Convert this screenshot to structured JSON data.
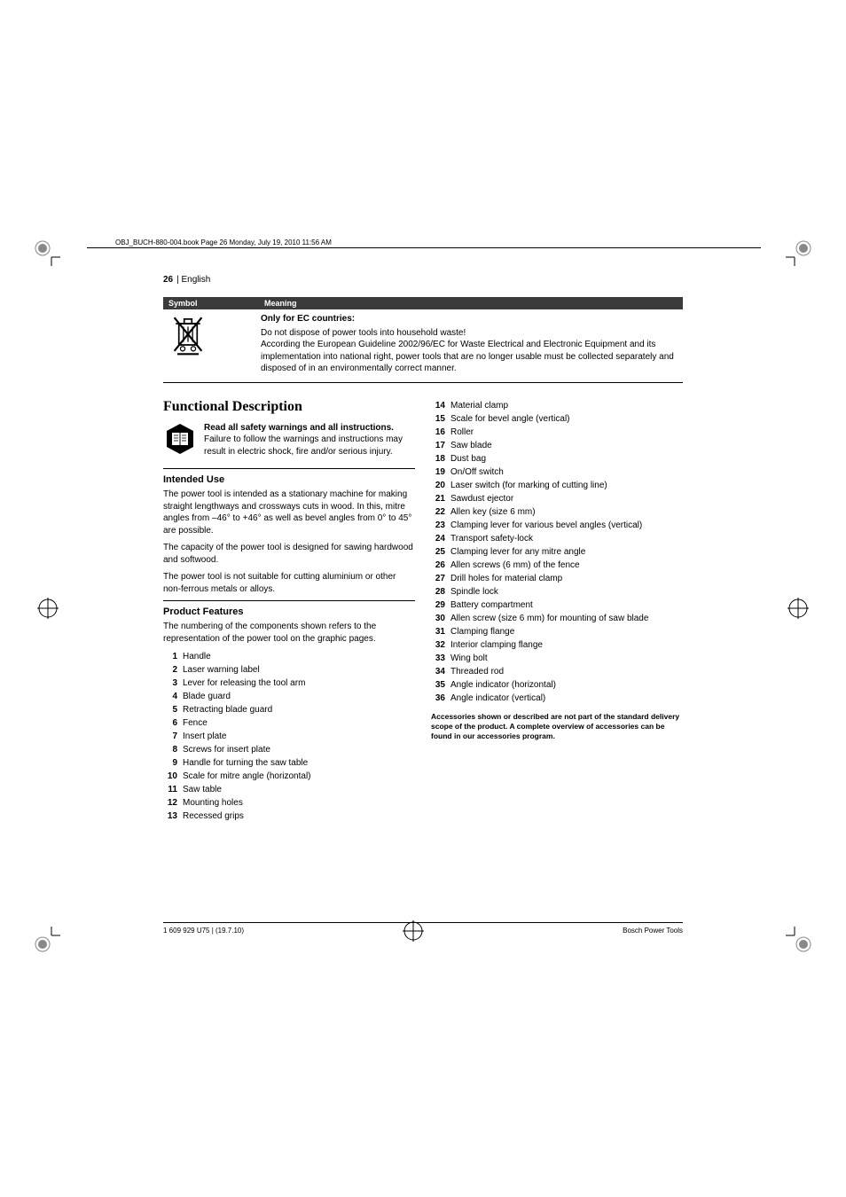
{
  "page_header": "OBJ_BUCH-880-004.book  Page 26  Monday, July 19, 2010  11:56 AM",
  "page_num": "26",
  "page_lang": "| English",
  "table": {
    "header_symbol": "Symbol",
    "header_meaning": "Meaning",
    "row": {
      "title": "Only for EC countries:",
      "line1": "Do not dispose of power tools into household waste!",
      "line2": "According the European Guideline 2002/96/EC for Waste Electrical and Electronic Equipment and its implementation into national right, power tools that are no longer usable must be collected separately and disposed of in an environmentally correct manner."
    }
  },
  "section_title": "Functional Description",
  "warning": {
    "bold": "Read all safety warnings and all instructions.",
    "rest": " Failure to follow the warnings and instructions may result in electric shock, fire and/or serious injury."
  },
  "intended_use": {
    "title": "Intended Use",
    "p1": "The power tool is intended as a stationary machine for making straight lengthways and crossways cuts in wood. In this, mitre angles from –46° to +46° as well as bevel angles from 0° to 45° are possible.",
    "p2": "The capacity of the power tool is designed for sawing hardwood and softwood.",
    "p3": "The power tool is not suitable for cutting aluminium or other non-ferrous metals or alloys."
  },
  "product_features": {
    "title": "Product Features",
    "intro": "The numbering of the components shown refers to the representation of the power tool on the graphic pages.",
    "items_left": [
      {
        "n": "1",
        "t": "Handle"
      },
      {
        "n": "2",
        "t": "Laser warning label"
      },
      {
        "n": "3",
        "t": "Lever for releasing the tool arm"
      },
      {
        "n": "4",
        "t": "Blade guard"
      },
      {
        "n": "5",
        "t": "Retracting blade guard"
      },
      {
        "n": "6",
        "t": "Fence"
      },
      {
        "n": "7",
        "t": "Insert plate"
      },
      {
        "n": "8",
        "t": "Screws for insert plate"
      },
      {
        "n": "9",
        "t": "Handle for turning the saw table"
      },
      {
        "n": "10",
        "t": "Scale for mitre angle (horizontal)"
      },
      {
        "n": "11",
        "t": "Saw table"
      },
      {
        "n": "12",
        "t": "Mounting holes"
      },
      {
        "n": "13",
        "t": "Recessed grips"
      }
    ],
    "items_right": [
      {
        "n": "14",
        "t": "Material clamp"
      },
      {
        "n": "15",
        "t": "Scale for bevel angle (vertical)"
      },
      {
        "n": "16",
        "t": "Roller"
      },
      {
        "n": "17",
        "t": "Saw blade"
      },
      {
        "n": "18",
        "t": "Dust bag"
      },
      {
        "n": "19",
        "t": "On/Off switch"
      },
      {
        "n": "20",
        "t": "Laser switch (for marking of cutting line)"
      },
      {
        "n": "21",
        "t": "Sawdust ejector"
      },
      {
        "n": "22",
        "t": "Allen key (size 6 mm)"
      },
      {
        "n": "23",
        "t": "Clamping lever for various bevel angles (vertical)"
      },
      {
        "n": "24",
        "t": "Transport safety-lock"
      },
      {
        "n": "25",
        "t": "Clamping lever for any mitre angle"
      },
      {
        "n": "26",
        "t": "Allen screws (6 mm) of the fence"
      },
      {
        "n": "27",
        "t": "Drill holes for material clamp"
      },
      {
        "n": "28",
        "t": "Spindle lock"
      },
      {
        "n": "29",
        "t": "Battery compartment"
      },
      {
        "n": "30",
        "t": "Allen screw (size 6 mm) for mounting of saw blade"
      },
      {
        "n": "31",
        "t": "Clamping flange"
      },
      {
        "n": "32",
        "t": "Interior clamping flange"
      },
      {
        "n": "33",
        "t": "Wing bolt"
      },
      {
        "n": "34",
        "t": "Threaded rod"
      },
      {
        "n": "35",
        "t": "Angle indicator (horizontal)"
      },
      {
        "n": "36",
        "t": "Angle indicator (vertical)"
      }
    ],
    "note": "Accessories shown or described are not part of the standard delivery scope of the product. A complete overview of accessories can be found in our accessories program."
  },
  "footer": {
    "left": "1 609 929 U75 | (19.7.10)",
    "right": "Bosch Power Tools"
  },
  "colors": {
    "table_header_bg": "#3b3b3b",
    "text": "#000000",
    "bg": "#ffffff"
  }
}
